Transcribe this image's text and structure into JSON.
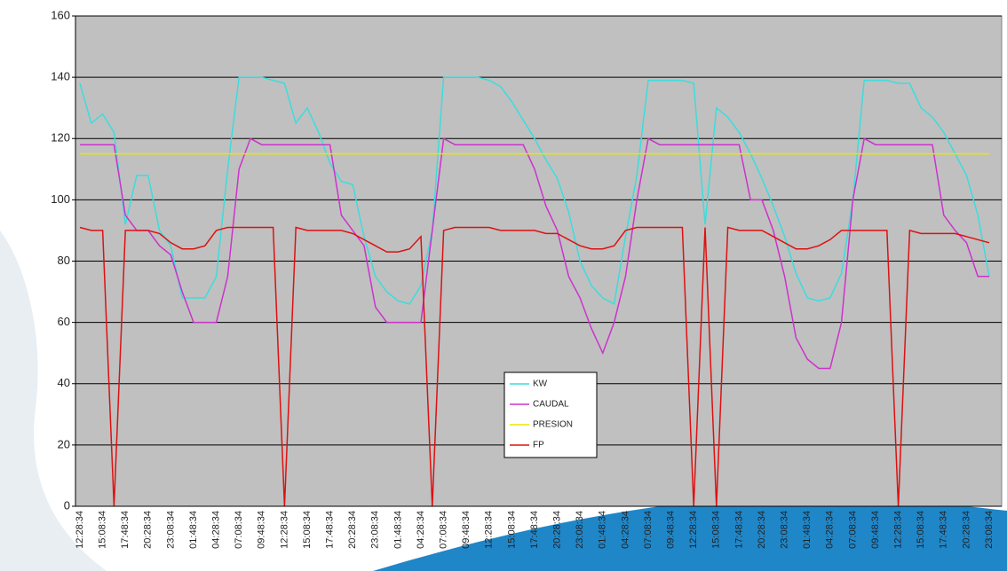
{
  "chart_data": {
    "type": "line",
    "categories": [
      "12:28:34",
      null,
      "15:08:34",
      null,
      "17:48:34",
      null,
      "20:28:34",
      null,
      "23:08:34",
      null,
      "01:48:34",
      null,
      "04:28:34",
      null,
      "07:08:34",
      null,
      "09:48:34",
      null,
      "12:28:34",
      null,
      "15:08:34",
      null,
      "17:48:34",
      null,
      "20:28:34",
      null,
      "23:08:34",
      null,
      "01:48:34",
      null,
      "04:28:34",
      null,
      "07:08:34",
      null,
      "09:48:34",
      null,
      "12:28:34",
      null,
      "15:08:34",
      null,
      "17:48:34",
      null,
      "20:28:34",
      null,
      "23:08:34",
      null,
      "01:48:34",
      null,
      "04:28:34",
      null,
      "07:08:34",
      null,
      "09:48:34",
      null,
      "12:28:34",
      null,
      "15:08:34",
      null,
      "17:48:34",
      null,
      "20:28:34",
      null,
      "23:08:34",
      null,
      "01:48:34",
      null,
      "04:28:34",
      null,
      "07:08:34",
      null,
      "09:48:34",
      null,
      "12:28:34",
      null,
      "15:08:34",
      null,
      "17:48:34",
      null,
      "20:28:34",
      null,
      "23:08:34"
    ],
    "series": [
      {
        "name": "KW",
        "color": "#3ddcdc",
        "values": [
          138,
          125,
          128,
          122,
          92,
          108,
          108,
          90,
          85,
          68,
          68,
          68,
          75,
          110,
          140,
          140,
          140,
          139,
          138,
          125,
          130,
          122,
          112,
          106,
          105,
          88,
          75,
          70,
          67,
          66,
          72,
          90,
          140,
          140,
          140,
          140,
          139,
          137,
          132,
          126,
          120,
          113,
          107,
          96,
          80,
          72,
          68,
          66,
          88,
          108,
          139,
          139,
          139,
          139,
          138,
          92,
          130,
          127,
          122,
          115,
          107,
          98,
          88,
          76,
          68,
          67,
          68,
          76,
          100,
          139,
          139,
          139,
          138,
          138,
          130,
          127,
          122,
          115,
          108,
          95,
          75
        ]
      },
      {
        "name": "CAUDAL",
        "color": "#cc33cc",
        "values": [
          118,
          118,
          118,
          118,
          95,
          90,
          90,
          85,
          82,
          70,
          60,
          60,
          60,
          75,
          110,
          120,
          118,
          118,
          118,
          118,
          118,
          118,
          118,
          95,
          90,
          85,
          65,
          60,
          60,
          60,
          60,
          90,
          120,
          118,
          118,
          118,
          118,
          118,
          118,
          118,
          110,
          98,
          90,
          75,
          68,
          58,
          50,
          60,
          75,
          100,
          120,
          118,
          118,
          118,
          118,
          118,
          118,
          118,
          118,
          100,
          100,
          90,
          75,
          55,
          48,
          45,
          45,
          60,
          100,
          120,
          118,
          118,
          118,
          118,
          118,
          118,
          95,
          90,
          86,
          75,
          75
        ]
      },
      {
        "name": "PRESION",
        "color": "#e8e800",
        "values": [
          115,
          115,
          115,
          115,
          115,
          115,
          115,
          115,
          115,
          115,
          115,
          115,
          115,
          115,
          115,
          115,
          115,
          115,
          115,
          115,
          115,
          115,
          115,
          115,
          115,
          115,
          115,
          115,
          115,
          115,
          115,
          115,
          115,
          115,
          115,
          115,
          115,
          115,
          115,
          115,
          115,
          115,
          115,
          115,
          115,
          115,
          115,
          115,
          115,
          115,
          115,
          115,
          115,
          115,
          115,
          115,
          115,
          115,
          115,
          115,
          115,
          115,
          115,
          115,
          115,
          115,
          115,
          115,
          115,
          115,
          115,
          115,
          115,
          115,
          115,
          115,
          115,
          115,
          115,
          115,
          115
        ]
      },
      {
        "name": "FP",
        "color": "#dd1111",
        "values": [
          91,
          90,
          90,
          0,
          90,
          90,
          90,
          89,
          86,
          84,
          84,
          85,
          90,
          91,
          91,
          91,
          91,
          91,
          0,
          91,
          90,
          90,
          90,
          90,
          89,
          87,
          85,
          83,
          83,
          84,
          88,
          0,
          90,
          91,
          91,
          91,
          91,
          90,
          90,
          90,
          90,
          89,
          89,
          87,
          85,
          84,
          84,
          85,
          90,
          91,
          91,
          91,
          91,
          91,
          0,
          91,
          0,
          91,
          90,
          90,
          90,
          88,
          86,
          84,
          84,
          85,
          87,
          90,
          90,
          90,
          90,
          90,
          0,
          90,
          89,
          89,
          89,
          89,
          88,
          87,
          86
        ]
      }
    ],
    "ylim": [
      0,
      160
    ],
    "yticks": [
      0,
      20,
      40,
      60,
      80,
      100,
      120,
      140,
      160
    ],
    "grid": true
  }
}
